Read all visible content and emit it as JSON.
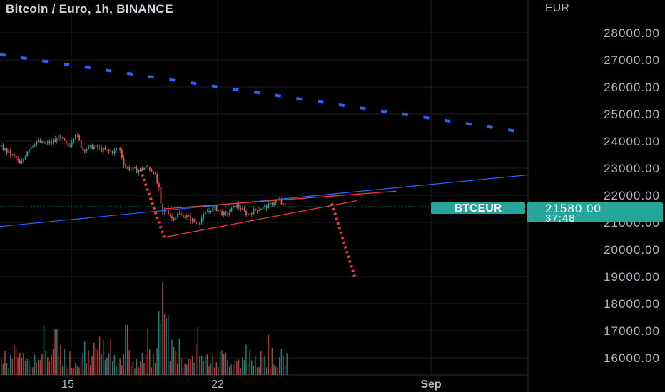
{
  "header": {
    "title": "Bitcoin / Euro, 1h, BINANCE",
    "currency": "EUR"
  },
  "colors": {
    "background": "#000000",
    "grid": "#1c1e24",
    "up": "#26a69a",
    "down": "#ef5350",
    "wedge": "#f23645",
    "projection": "#f23645",
    "channel_dotted": "#2962ff",
    "trend_solid": "#2962ff",
    "axis_text": "#b2b5be",
    "tag": "#26a69a"
  },
  "last_price": {
    "symbol": "BTCEUR",
    "price": "21580.00",
    "countdown": "37:48",
    "value": 21580
  },
  "chart_data": {
    "type": "candlestick",
    "title": "Bitcoin / Euro, 1h, BINANCE",
    "y_unit": "EUR",
    "y_ticks": [
      28000,
      27000,
      26000,
      25000,
      24000,
      23000,
      22000,
      21000,
      20000,
      19000,
      18000,
      17000,
      16000
    ],
    "y_tick_labels": [
      "28000.00",
      "27000.00",
      "26000.00",
      "25000.00",
      "24000.00",
      "23000.00",
      "22000.00",
      "21000.00",
      "20000.00",
      "19000.00",
      "18000.00",
      "17000.00",
      "16000.00"
    ],
    "ylim": [
      15500,
      28800
    ],
    "x_tick_labels": [
      "15",
      "22",
      "Sep"
    ],
    "grid": true,
    "price_path": [
      [
        0,
        23800
      ],
      [
        20,
        23400
      ],
      [
        28,
        23100
      ],
      [
        38,
        23700
      ],
      [
        50,
        24000
      ],
      [
        60,
        23900
      ],
      [
        72,
        23950
      ],
      [
        82,
        24150
      ],
      [
        95,
        23800
      ],
      [
        105,
        24300
      ],
      [
        115,
        23700
      ],
      [
        130,
        23800
      ],
      [
        145,
        23650
      ],
      [
        158,
        23600
      ],
      [
        166,
        23800
      ],
      [
        174,
        23050
      ],
      [
        190,
        22900
      ],
      [
        205,
        23050
      ],
      [
        215,
        22850
      ],
      [
        222,
        22200
      ],
      [
        226,
        21300
      ],
      [
        232,
        21500
      ],
      [
        240,
        21150
      ],
      [
        250,
        21300
      ],
      [
        262,
        21200
      ],
      [
        275,
        20950
      ],
      [
        290,
        21400
      ],
      [
        300,
        21550
      ],
      [
        315,
        21250
      ],
      [
        330,
        21650
      ],
      [
        345,
        21300
      ],
      [
        360,
        21500
      ],
      [
        375,
        21600
      ],
      [
        388,
        21850
      ],
      [
        398,
        21580
      ]
    ],
    "volume_profile_note": "volume histogram bars at bottom",
    "drawings": {
      "wedge_upper": [
        [
          230,
          21500
        ],
        [
          555,
          22150
        ]
      ],
      "wedge_lower": [
        [
          230,
          20450
        ],
        [
          500,
          21800
        ]
      ],
      "projection_left": [
        [
          197,
          22950
        ],
        [
          230,
          20450
        ]
      ],
      "projection_right": [
        [
          465,
          21700
        ],
        [
          497,
          19000
        ]
      ],
      "blue_dotted_channel": [
        [
          0,
          27200
        ],
        [
          730,
          24350
        ]
      ],
      "blue_solid_trend": [
        [
          0,
          20850
        ],
        [
          740,
          22750
        ]
      ]
    }
  }
}
